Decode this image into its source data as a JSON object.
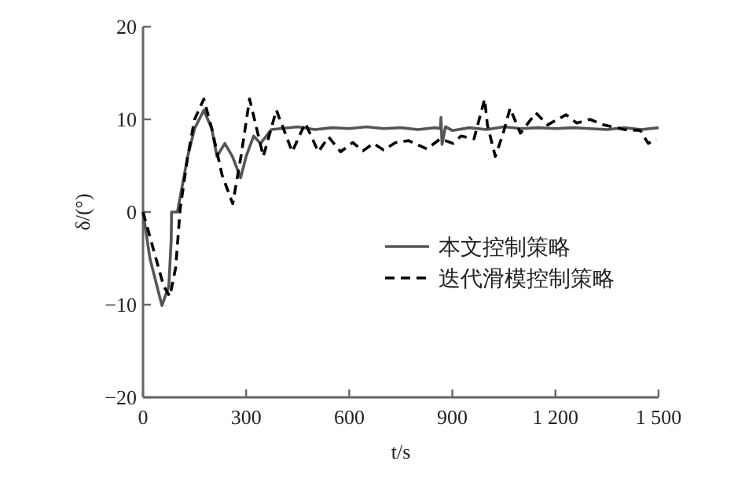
{
  "chart_data": {
    "type": "line",
    "xlabel": "t/s",
    "ylabel": "δ/(°)",
    "xlim": [
      0,
      1500
    ],
    "ylim": [
      -20,
      20
    ],
    "xticks": [
      0,
      300,
      600,
      900,
      {
        "value": 1200,
        "label": "1 200"
      },
      {
        "value": 1500,
        "label": "1 500"
      }
    ],
    "yticks": [
      -20,
      -10,
      0,
      10,
      20
    ],
    "grid": false,
    "legend": "right",
    "series": [
      {
        "name": "本文控制策略",
        "color": "#555555",
        "line_style": "solid",
        "x": [
          0,
          20,
          55,
          75,
          82,
          83,
          100,
          130,
          150,
          177,
          200,
          215,
          238,
          260,
          284,
          300,
          322,
          342,
          373,
          400,
          450,
          500,
          550,
          600,
          650,
          700,
          750,
          800,
          850,
          865,
          867,
          870,
          880,
          900,
          950,
          1000,
          1050,
          1100,
          1150,
          1200,
          1250,
          1300,
          1350,
          1400,
          1450,
          1500
        ],
        "values": [
          0,
          -5,
          -10.1,
          -8,
          -3,
          0,
          0,
          6,
          9,
          11,
          9,
          6,
          7.4,
          6,
          3.7,
          6,
          8.2,
          7.4,
          8.9,
          9,
          9.2,
          8.9,
          9.1,
          9,
          9.2,
          9,
          9.1,
          8.9,
          9.1,
          9,
          10.2,
          7.3,
          9.2,
          8.8,
          9.1,
          8.9,
          9.2,
          9.0,
          9.1,
          9.0,
          9.1,
          9.0,
          8.9,
          9.1,
          8.9,
          9.1
        ]
      },
      {
        "name": "迭代滑模控制策略",
        "color": "#000000",
        "line_style": "dashed",
        "x": [
          0,
          30,
          60,
          78,
          95,
          108,
          130,
          150,
          177,
          200,
          230,
          261,
          285,
          310,
          350,
          388,
          434,
          472,
          510,
          540,
          575,
          610,
          640,
          670,
          700,
          735,
          773,
          826,
          865,
          902,
          925,
          963,
          994,
          1002,
          1025,
          1048,
          1068,
          1098,
          1143,
          1177,
          1231,
          1262,
          1300,
          1340,
          1400,
          1447,
          1470,
          1493
        ],
        "values": [
          0,
          -4,
          -8,
          -9.1,
          -6,
          0.3,
          6,
          10,
          12.2,
          9,
          4,
          0.9,
          6,
          12.2,
          6.0,
          11.0,
          6.5,
          9.6,
          6.5,
          8.1,
          6.5,
          7.5,
          6.6,
          7.4,
          6.7,
          7.5,
          7.7,
          6.8,
          7.9,
          7.4,
          8.2,
          7.9,
          12.2,
          9.4,
          6.0,
          8.5,
          11.2,
          8.5,
          10.7,
          9.4,
          10.5,
          9.6,
          10.0,
          9.4,
          8.9,
          8.8,
          7.4,
          7.9
        ]
      }
    ]
  }
}
